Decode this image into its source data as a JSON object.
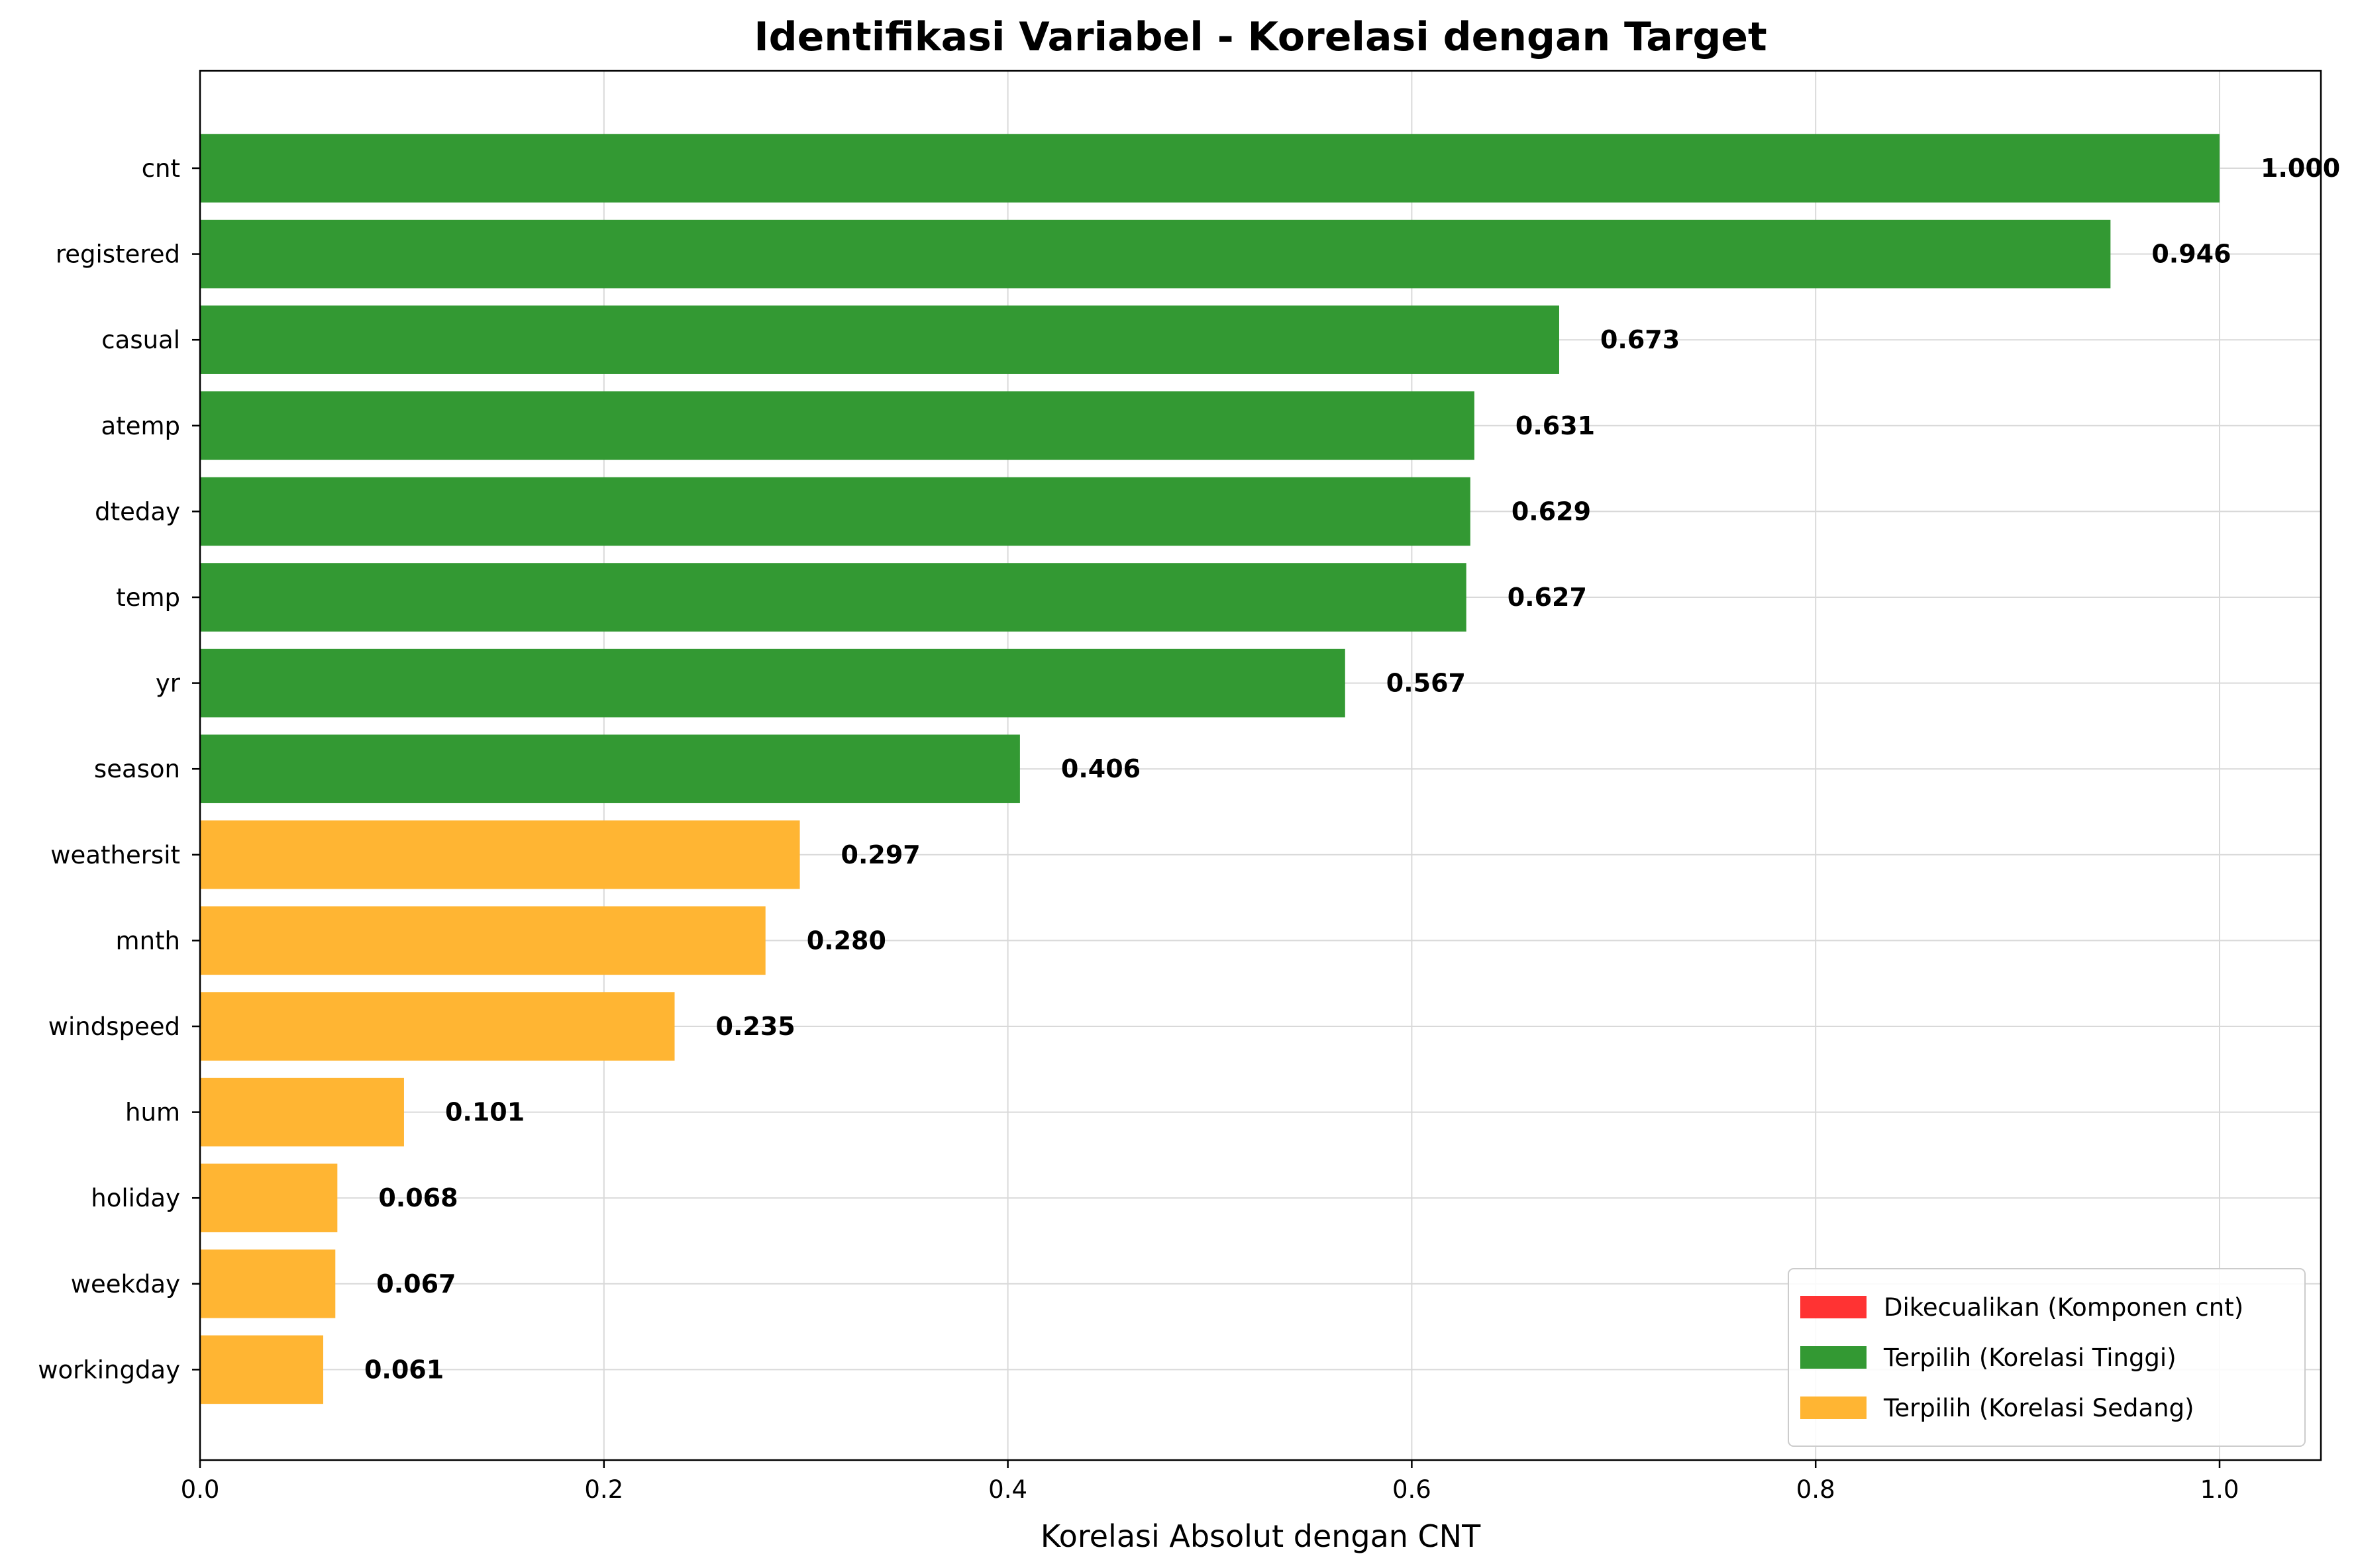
{
  "chart_data": {
    "type": "bar",
    "orientation": "horizontal",
    "title": "Identifikasi Variabel - Korelasi dengan Target",
    "xlabel": "Korelasi Absolut dengan CNT",
    "ylabel": "",
    "xlim": [
      0,
      1.05
    ],
    "x_ticks": [
      "0.0",
      "0.2",
      "0.4",
      "0.6",
      "0.8",
      "1.0"
    ],
    "x_tick_values": [
      0.0,
      0.2,
      0.4,
      0.6,
      0.8,
      1.0
    ],
    "grid": true,
    "legend_position": "lower-right",
    "categories": [
      "cnt",
      "registered",
      "casual",
      "atemp",
      "dteday",
      "temp",
      "yr",
      "season",
      "weathersit",
      "mnth",
      "windspeed",
      "hum",
      "holiday",
      "weekday",
      "workingday"
    ],
    "values": [
      1.0,
      0.946,
      0.673,
      0.631,
      0.629,
      0.627,
      0.567,
      0.406,
      0.297,
      0.28,
      0.235,
      0.101,
      0.068,
      0.067,
      0.061
    ],
    "value_labels": [
      "1.000",
      "0.946",
      "0.673",
      "0.631",
      "0.629",
      "0.627",
      "0.567",
      "0.406",
      "0.297",
      "0.280",
      "0.235",
      "0.101",
      "0.068",
      "0.067",
      "0.061"
    ],
    "groups": [
      "high",
      "high",
      "high",
      "high",
      "high",
      "high",
      "high",
      "high",
      "medium",
      "medium",
      "medium",
      "medium",
      "medium",
      "medium",
      "medium"
    ],
    "legend": [
      {
        "key": "excluded",
        "label": "Dikecualikan (Komponen cnt)",
        "color": "#ff3333"
      },
      {
        "key": "high",
        "label": "Terpilih (Korelasi Tinggi)",
        "color": "#339933"
      },
      {
        "key": "medium",
        "label": "Terpilih (Korelasi Sedang)",
        "color": "#ffb533"
      }
    ]
  }
}
